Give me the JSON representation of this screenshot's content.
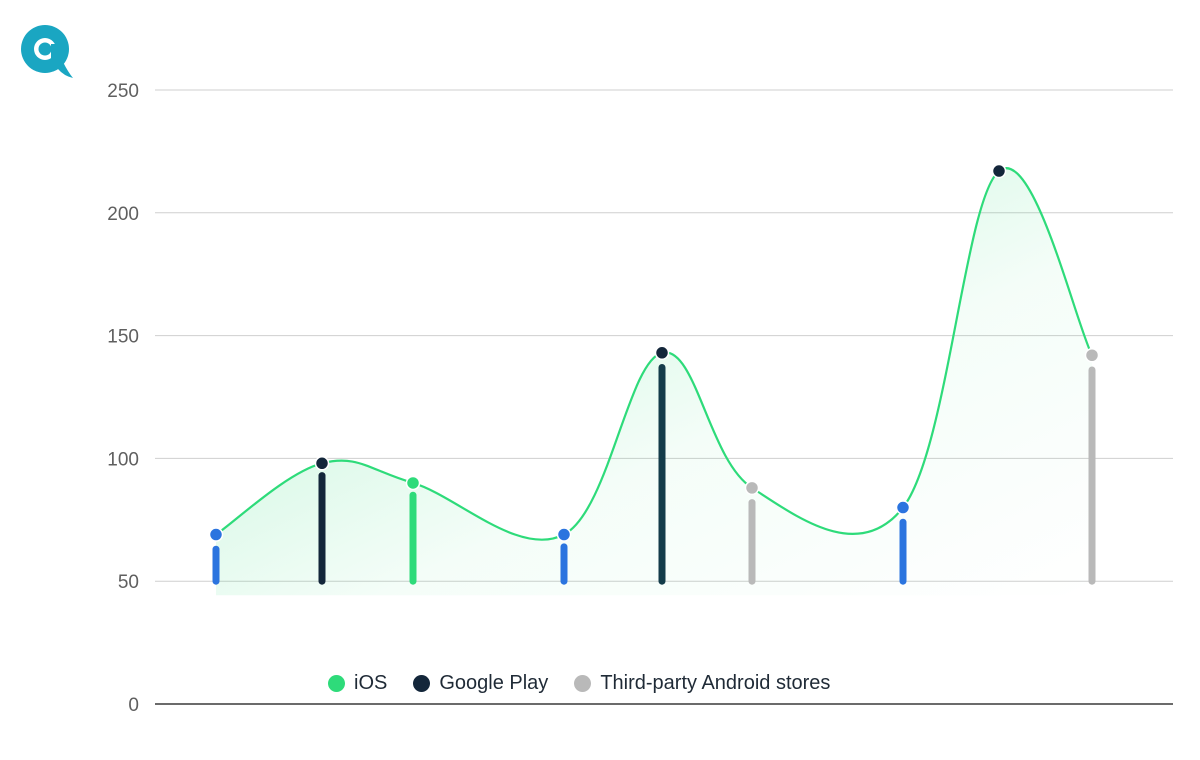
{
  "brand": {
    "icon": "brand-logo-icon",
    "color": "#1aa6c2"
  },
  "chart_data": {
    "type": "line",
    "title": "",
    "xlabel": "",
    "ylabel": "",
    "ylim": [
      0,
      250
    ],
    "yticks": [
      0,
      50,
      100,
      150,
      200,
      250
    ],
    "grid": true,
    "legend_position": "bottom",
    "legend": [
      {
        "name": "iOS",
        "color": "#2edb7a"
      },
      {
        "name": "Google Play",
        "color": "#13263a"
      },
      {
        "name": "Third-party Android stores",
        "color": "#b9b9b9"
      }
    ],
    "points": [
      {
        "value": 69,
        "dot_color": "#2b74df",
        "stem_color": "#2b74df",
        "stem_value": 63
      },
      {
        "value": 98,
        "dot_color": "#13263a",
        "stem_color": "#13263a",
        "stem_value": 93
      },
      {
        "value": 90,
        "dot_color": "#2edb7a",
        "stem_color": "#2edb7a",
        "stem_value": 85
      },
      {
        "value": 69,
        "dot_color": "#2b74df",
        "stem_color": "#2b74df",
        "stem_value": 64
      },
      {
        "value": 143,
        "dot_color": "#13263a",
        "stem_color": "#143c4a",
        "stem_value": 137
      },
      {
        "value": 88,
        "dot_color": "#b9b9b9",
        "stem_color": "#b9b9b9",
        "stem_value": 82
      },
      {
        "value": 80,
        "dot_color": "#2b74df",
        "stem_color": "#2b74df",
        "stem_value": 74
      },
      {
        "value": 217,
        "dot_color": "#13263a",
        "stem_color": null,
        "stem_value": null
      },
      {
        "value": 142,
        "dot_color": "#b9b9b9",
        "stem_color": "#b9b9b9",
        "stem_value": 136
      }
    ],
    "line_color": "#2edb7a",
    "fill_color": "#2edb7a",
    "baseline": 50
  }
}
